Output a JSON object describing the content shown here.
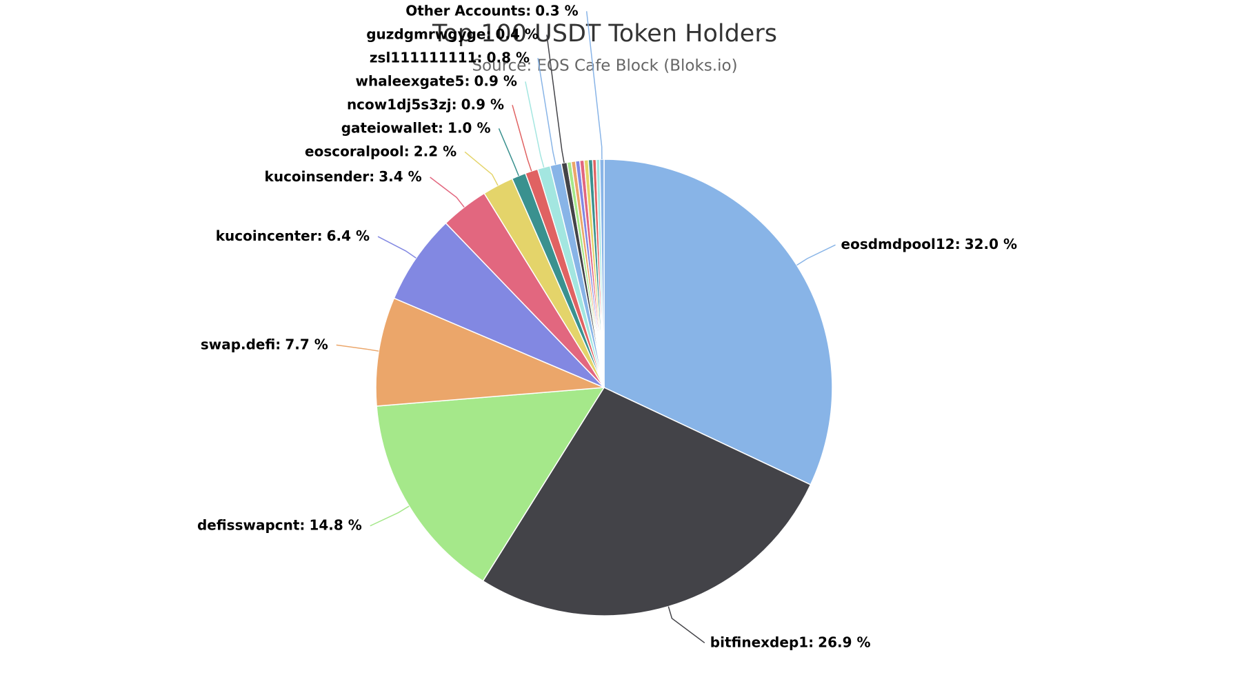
{
  "chart_data": {
    "type": "pie",
    "title": "Top 100 USDT Token Holders",
    "subtitle": "Source: EOS Cafe Block (Bloks.io)",
    "categories": [
      "eosdmdpool12:",
      "bitfinexdep1:",
      "defisswapcnt:",
      "swap.defi:",
      "kucoincenter:",
      "kucoinsender:",
      "eoscoralpool:",
      "gateiowallet:",
      "ncow1dj5s3zj:",
      "whaleexgate5:",
      "zsl111111111:",
      "guzdgmrwgyge:",
      null,
      null,
      null,
      null,
      null,
      null,
      null,
      null,
      "Other Accounts:"
    ],
    "values": [
      32.0,
      26.9,
      14.8,
      7.7,
      6.4,
      3.4,
      2.2,
      1.0,
      0.9,
      0.9,
      0.8,
      0.4,
      0.3,
      0.3,
      0.3,
      0.3,
      0.3,
      0.3,
      0.25,
      0.25,
      0.3
    ],
    "value_labels": [
      "32.0 %",
      "26.9 %",
      "14.8 %",
      "7.7 %",
      "6.4 %",
      "3.4 %",
      "2.2 %",
      "1.0 %",
      "0.9 %",
      "0.9 %",
      "0.8 %",
      "0.4 %",
      null,
      null,
      null,
      null,
      null,
      null,
      null,
      null,
      "0.3 %"
    ],
    "colors": [
      "#88b4e7",
      "#434348",
      "#a5e88a",
      "#eba66a",
      "#8288e2",
      "#e2677f",
      "#e4d46a",
      "#3a918f",
      "#e06262",
      "#a3e6e0"
    ]
  }
}
